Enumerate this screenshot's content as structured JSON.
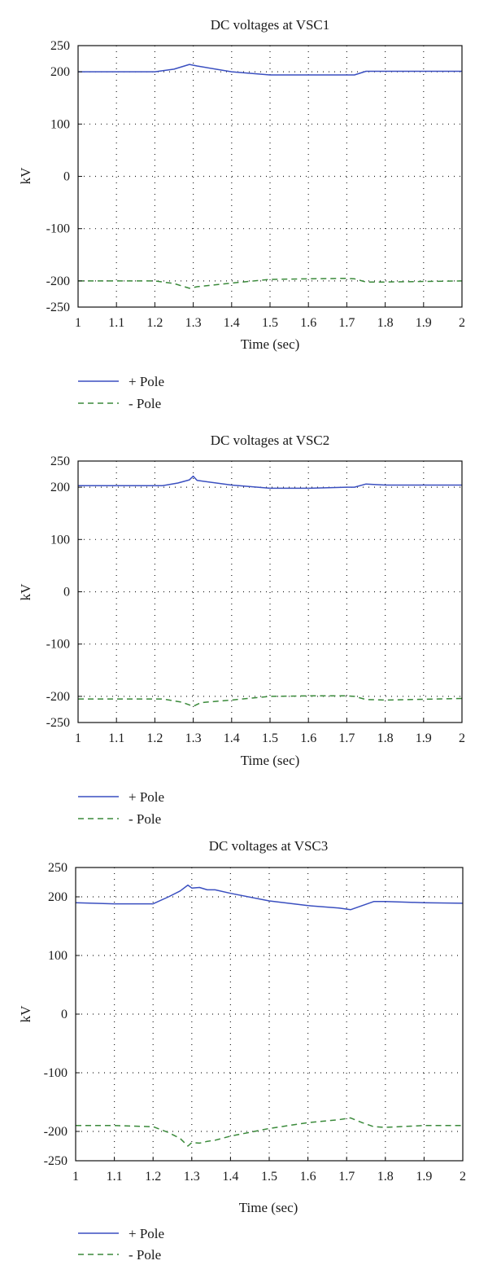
{
  "chart_data": [
    {
      "type": "line",
      "title": "DC voltages at VSC1",
      "xlabel": "Time (sec)",
      "ylabel": "kV",
      "xlim": [
        1,
        2
      ],
      "ylim": [
        -250,
        250
      ],
      "xticks": [
        "1",
        "1.1",
        "1.2",
        "1.3",
        "1.4",
        "1.5",
        "1.6",
        "1.7",
        "1.8",
        "1.9",
        "2"
      ],
      "yticks": [
        "250",
        "200",
        "100",
        "0",
        "-100",
        "-200",
        "-250"
      ],
      "grid": true,
      "legend_position": "below",
      "series": [
        {
          "name": "+ Pole",
          "color": "#3a4fc0",
          "dash": "solid",
          "x": [
            1.0,
            1.2,
            1.25,
            1.29,
            1.31,
            1.4,
            1.5,
            1.6,
            1.69,
            1.72,
            1.75,
            1.8,
            2.0
          ],
          "y": [
            200,
            200,
            205,
            214,
            211,
            200,
            194,
            194,
            194,
            194,
            201,
            201,
            201
          ]
        },
        {
          "name": "- Pole",
          "color": "#3a8a3a",
          "dash": "dashed",
          "x": [
            1.0,
            1.2,
            1.25,
            1.29,
            1.31,
            1.4,
            1.5,
            1.6,
            1.7,
            1.72,
            1.75,
            1.8,
            2.0
          ],
          "y": [
            -200,
            -200,
            -205,
            -214,
            -211,
            -204,
            -197,
            -196,
            -195,
            -196,
            -202,
            -202,
            -200
          ]
        }
      ]
    },
    {
      "type": "line",
      "title": "DC voltages at VSC2",
      "xlabel": "Time (sec)",
      "ylabel": "kV",
      "xlim": [
        1,
        2
      ],
      "ylim": [
        -250,
        250
      ],
      "xticks": [
        "1",
        "1.1",
        "1.2",
        "1.3",
        "1.4",
        "1.5",
        "1.6",
        "1.7",
        "1.8",
        "1.9",
        "2"
      ],
      "yticks": [
        "250",
        "200",
        "100",
        "0",
        "-100",
        "-200",
        "-250"
      ],
      "grid": true,
      "legend_position": "below",
      "series": [
        {
          "name": "+ Pole",
          "color": "#3a4fc0",
          "dash": "solid",
          "x": [
            1.0,
            1.22,
            1.26,
            1.29,
            1.3,
            1.31,
            1.4,
            1.5,
            1.6,
            1.7,
            1.72,
            1.75,
            1.8,
            2.0
          ],
          "y": [
            203,
            203,
            208,
            214,
            221,
            213,
            204,
            198,
            198,
            200,
            200,
            206,
            204,
            204
          ]
        },
        {
          "name": "- Pole",
          "color": "#3a8a3a",
          "dash": "dashed",
          "x": [
            1.0,
            1.22,
            1.27,
            1.3,
            1.32,
            1.4,
            1.5,
            1.6,
            1.7,
            1.72,
            1.75,
            1.8,
            2.0
          ],
          "y": [
            -205,
            -205,
            -211,
            -219,
            -212,
            -207,
            -200,
            -199,
            -199,
            -200,
            -206,
            -207,
            -204
          ]
        }
      ]
    },
    {
      "type": "line",
      "title": "DC voltages at VSC3",
      "xlabel": "Time (sec)",
      "ylabel": "kV",
      "xlim": [
        1,
        2
      ],
      "ylim": [
        -250,
        250
      ],
      "xticks": [
        "1",
        "1.1",
        "1.2",
        "1.3",
        "1.4",
        "1.5",
        "1.6",
        "1.7",
        "1.8",
        "1.9",
        "2"
      ],
      "yticks": [
        "250",
        "200",
        "100",
        "0",
        "-100",
        "-200",
        "-250"
      ],
      "grid": true,
      "legend_position": "below",
      "series": [
        {
          "name": "+ Pole",
          "color": "#3a4fc0",
          "dash": "solid",
          "x": [
            1.0,
            1.1,
            1.2,
            1.24,
            1.27,
            1.29,
            1.3,
            1.32,
            1.34,
            1.36,
            1.4,
            1.5,
            1.6,
            1.68,
            1.71,
            1.74,
            1.77,
            1.8,
            1.9,
            2.0
          ],
          "y": [
            190,
            188,
            188,
            200,
            210,
            220,
            215,
            216,
            212,
            212,
            206,
            193,
            185,
            181,
            178,
            185,
            192,
            192,
            190,
            189
          ]
        },
        {
          "name": "- Pole",
          "color": "#3a8a3a",
          "dash": "dashed",
          "x": [
            1.0,
            1.1,
            1.2,
            1.24,
            1.27,
            1.29,
            1.3,
            1.32,
            1.34,
            1.36,
            1.4,
            1.5,
            1.6,
            1.68,
            1.71,
            1.74,
            1.77,
            1.8,
            1.9,
            2.0
          ],
          "y": [
            -190,
            -190,
            -192,
            -202,
            -212,
            -225,
            -219,
            -220,
            -217,
            -215,
            -208,
            -195,
            -185,
            -180,
            -177,
            -185,
            -192,
            -193,
            -190,
            -190
          ]
        }
      ]
    }
  ]
}
